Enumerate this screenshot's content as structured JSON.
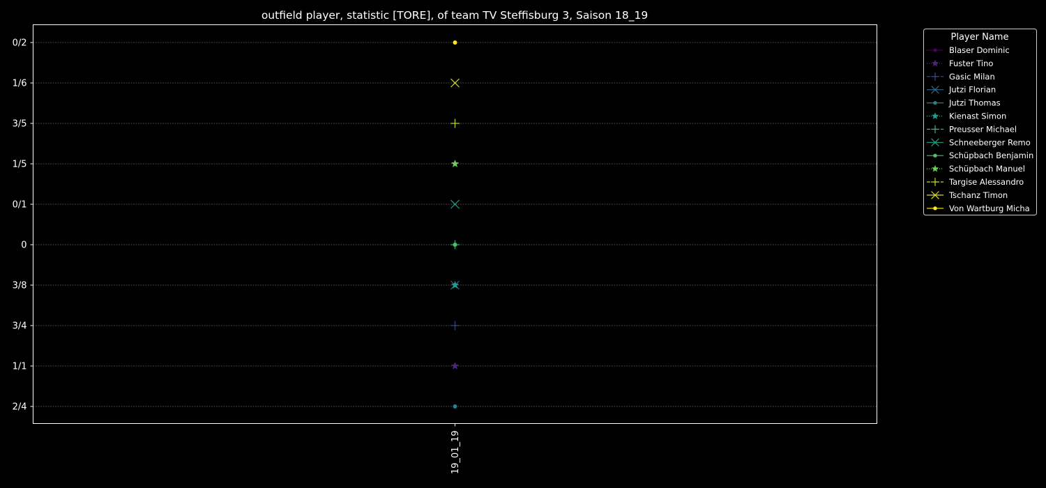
{
  "chart_data": {
    "type": "scatter",
    "title": "outfield player, statistic [TORE], of team TV Steffisburg 3, Saison 18_19",
    "xlabel": "",
    "ylabel": "",
    "x_categories": [
      "19_01_19"
    ],
    "y_categories": [
      "2/4",
      "1/1",
      "3/4",
      "3/8",
      "0",
      "0/1",
      "1/5",
      "3/5",
      "1/6",
      "0/2"
    ],
    "grid": "horizontal-dashed",
    "legend": {
      "title": "Player Name",
      "placement": "outside-right"
    },
    "series": [
      {
        "name": "Blaser Dominic",
        "marker": "circle",
        "linestyle": "solid",
        "color": "#440154",
        "x": "19_01_19",
        "y": "0"
      },
      {
        "name": "Fuster Tino",
        "marker": "star",
        "linestyle": "dotted",
        "color": "#482878",
        "x": "19_01_19",
        "y": "1/1"
      },
      {
        "name": "Gasic Milan",
        "marker": "plus",
        "linestyle": "dashdot",
        "color": "#3e4989",
        "x": "19_01_19",
        "y": "3/4"
      },
      {
        "name": "Jutzi Florian",
        "marker": "x",
        "linestyle": "solid",
        "color": "#31688e",
        "x": "19_01_19",
        "y": "3/8"
      },
      {
        "name": "Jutzi Thomas",
        "marker": "circle",
        "linestyle": "solid",
        "color": "#26828e",
        "x": "19_01_19",
        "y": "2/4"
      },
      {
        "name": "Kienast Simon",
        "marker": "star",
        "linestyle": "dotted",
        "color": "#1f9e89",
        "x": "19_01_19",
        "y": "3/8"
      },
      {
        "name": "Preusser Michael",
        "marker": "plus",
        "linestyle": "dashdot",
        "color": "#35b779",
        "x": "19_01_19",
        "y": "0"
      },
      {
        "name": "Schneeberger Remo",
        "marker": "x",
        "linestyle": "solid",
        "color": "#1fa187",
        "x": "19_01_19",
        "y": "0/1"
      },
      {
        "name": "Schüpbach Benjamin",
        "marker": "circle",
        "linestyle": "solid",
        "color": "#4ac16d",
        "x": "19_01_19",
        "y": "0"
      },
      {
        "name": "Schüpbach Manuel",
        "marker": "star",
        "linestyle": "dotted",
        "color": "#6ece58",
        "x": "19_01_19",
        "y": "1/5"
      },
      {
        "name": "Targise Alessandro",
        "marker": "plus",
        "linestyle": "dashdot",
        "color": "#b5de2b",
        "x": "19_01_19",
        "y": "3/5"
      },
      {
        "name": "Tschanz Timon",
        "marker": "x",
        "linestyle": "solid",
        "color": "#d8e219",
        "x": "19_01_19",
        "y": "1/6"
      },
      {
        "name": "Von Wartburg Micha",
        "marker": "circle",
        "linestyle": "solid",
        "color": "#fde725",
        "x": "19_01_19",
        "y": "0/2"
      }
    ]
  }
}
